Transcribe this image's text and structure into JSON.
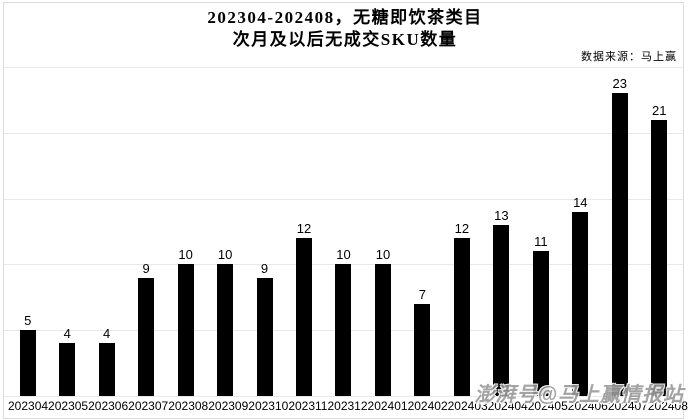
{
  "header": {
    "title_line1": "202304-202408，无糖即饮茶类目",
    "title_line2": "次月及以后无成交SKU数量",
    "source_note": "数据来源：马上赢"
  },
  "watermark_text": "澎湃号@马上赢情报站",
  "colors": {
    "bar": "#000000",
    "gridline": "#e8e8e8",
    "frame_border": "#dcdcdc",
    "watermark": "#9a9a9a",
    "text": "#000000",
    "background": "#ffffff"
  },
  "chart_data": {
    "type": "bar",
    "title": "202304-202408，无糖即饮茶类目 次月及以后无成交SKU数量",
    "categories": [
      "202304",
      "202305",
      "202306",
      "202307",
      "202308",
      "202309",
      "202310",
      "202311",
      "202312",
      "202401",
      "202402",
      "202403",
      "202404",
      "202405",
      "202406",
      "202407",
      "202408"
    ],
    "values": [
      5,
      4,
      4,
      9,
      10,
      10,
      9,
      12,
      10,
      10,
      7,
      12,
      13,
      11,
      14,
      23,
      21
    ],
    "xlabel": "",
    "ylabel": "",
    "ylim": [
      0,
      25
    ],
    "grid": true,
    "gridline_step": 5,
    "y_axis_labels_visible": false,
    "data_labels": true,
    "legend_position": "none",
    "bar_color": "#000000",
    "source_annotation": "数据来源：马上赢"
  }
}
